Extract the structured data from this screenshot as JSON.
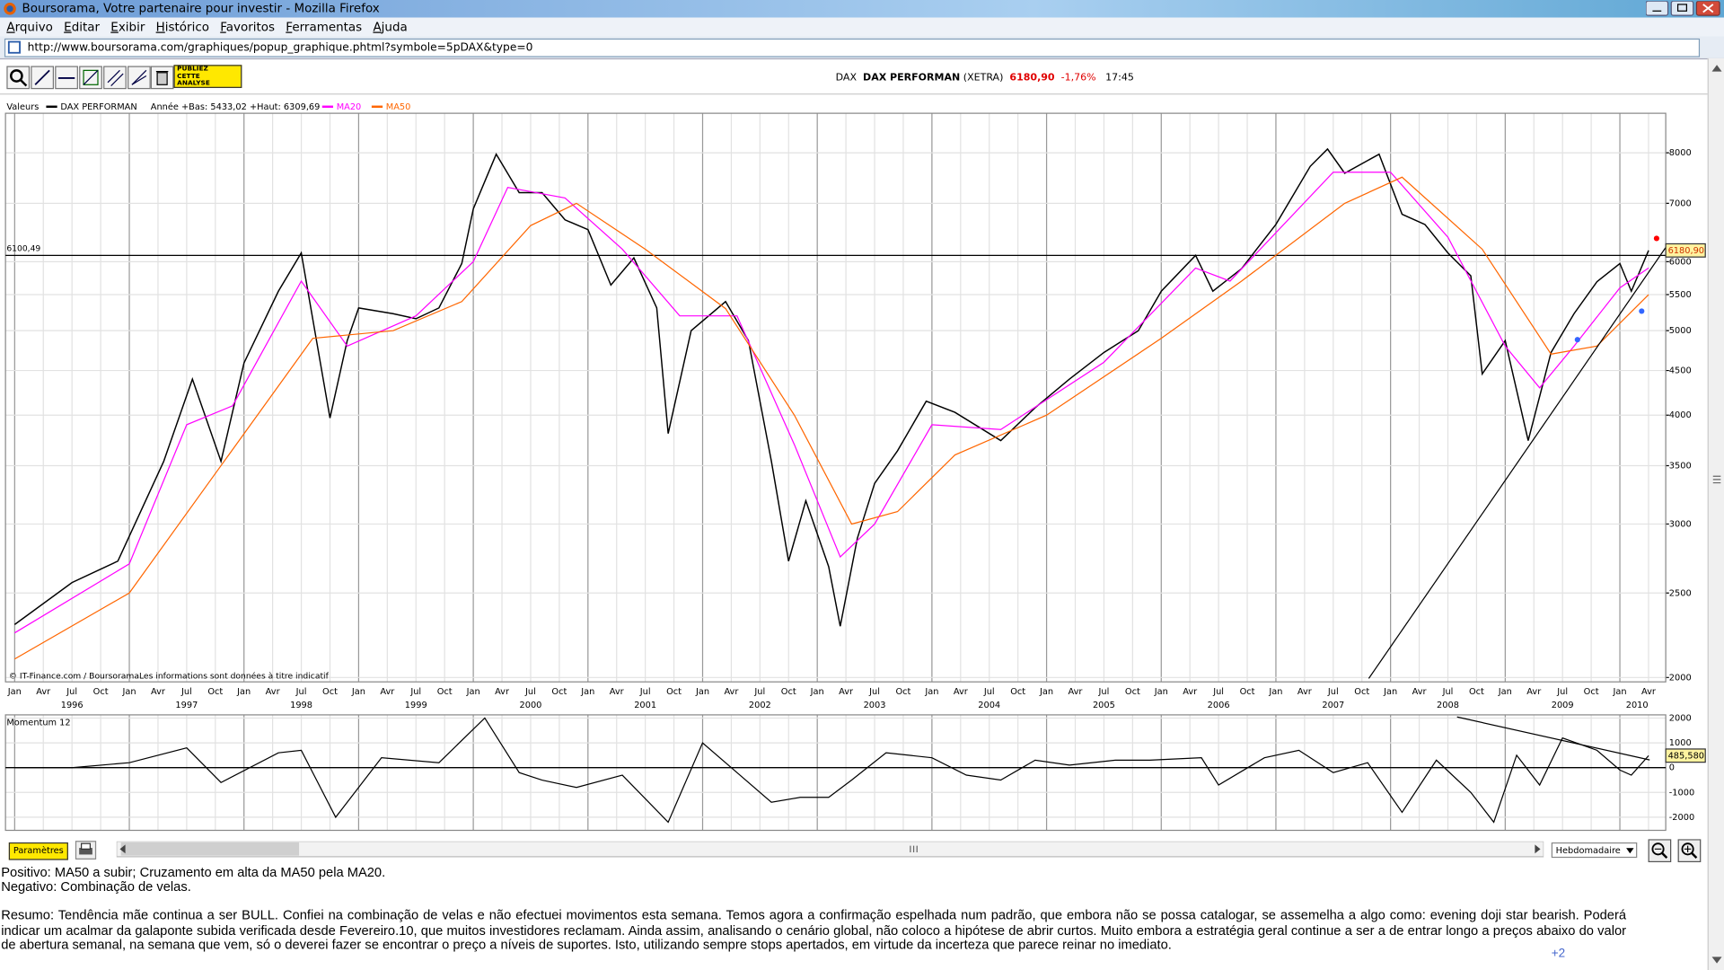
{
  "window": {
    "title": "Boursorama, Votre partenaire pour investir - Mozilla Firefox"
  },
  "menu": [
    "Arquivo",
    "Editar",
    "Exibir",
    "Histórico",
    "Favoritos",
    "Ferramentas",
    "Ajuda"
  ],
  "address": "http://www.boursorama.com/graphiques/popup_graphique.phtml?symbole=5pDAX&type=0",
  "toolbar": {
    "publish": [
      "PUBLIEZ",
      "CETTE",
      "ANALYSE"
    ]
  },
  "quote": {
    "code": "DAX",
    "name": "DAX PERFORMAN",
    "market": "(XETRA)",
    "price": "6180,90",
    "change": "-1,76%",
    "time": "17:45"
  },
  "chart_data": {
    "type": "line",
    "log_scale": true,
    "grid": true,
    "legend_title": "Valeurs",
    "range_note": "Année +Bas: 5433,02 +Haut: 6309,69",
    "source": "© IT-Finance.com / BoursoramaLes informations sont données à titre indicatif",
    "xlim": [
      1995.92,
      2010.4
    ],
    "ylim": [
      1977,
      8880
    ],
    "yticks": [
      2000,
      2500,
      3000,
      3500,
      4000,
      4500,
      5000,
      5500,
      6000,
      7000,
      8000
    ],
    "xticks": [
      {
        "value": 1996,
        "label": "Jan"
      },
      {
        "value": 1996.25,
        "label": "Avr"
      },
      {
        "value": 1996.5,
        "label": "Jul"
      },
      {
        "value": 1996.75,
        "label": "Oct"
      },
      {
        "value": 1997,
        "label": "Jan"
      },
      {
        "value": 1997.25,
        "label": "Avr"
      },
      {
        "value": 1997.5,
        "label": "Jul"
      },
      {
        "value": 1997.75,
        "label": "Oct"
      },
      {
        "value": 1998,
        "label": "Jan"
      },
      {
        "value": 1998.25,
        "label": "Avr"
      },
      {
        "value": 1998.5,
        "label": "Jul"
      },
      {
        "value": 1998.75,
        "label": "Oct"
      },
      {
        "value": 1999,
        "label": "Jan"
      },
      {
        "value": 1999.25,
        "label": "Avr"
      },
      {
        "value": 1999.5,
        "label": "Jul"
      },
      {
        "value": 1999.75,
        "label": "Oct"
      },
      {
        "value": 2000,
        "label": "Jan"
      },
      {
        "value": 2000.25,
        "label": "Avr"
      },
      {
        "value": 2000.5,
        "label": "Jul"
      },
      {
        "value": 2000.75,
        "label": "Oct"
      },
      {
        "value": 2001,
        "label": "Jan"
      },
      {
        "value": 2001.25,
        "label": "Avr"
      },
      {
        "value": 2001.5,
        "label": "Jul"
      },
      {
        "value": 2001.75,
        "label": "Oct"
      },
      {
        "value": 2002,
        "label": "Jan"
      },
      {
        "value": 2002.25,
        "label": "Avr"
      },
      {
        "value": 2002.5,
        "label": "Jul"
      },
      {
        "value": 2002.75,
        "label": "Oct"
      },
      {
        "value": 2003,
        "label": "Jan"
      },
      {
        "value": 2003.25,
        "label": "Avr"
      },
      {
        "value": 2003.5,
        "label": "Jul"
      },
      {
        "value": 2003.75,
        "label": "Oct"
      },
      {
        "value": 2004,
        "label": "Jan"
      },
      {
        "value": 2004.25,
        "label": "Avr"
      },
      {
        "value": 2004.5,
        "label": "Jul"
      },
      {
        "value": 2004.75,
        "label": "Oct"
      },
      {
        "value": 2005,
        "label": "Jan"
      },
      {
        "value": 2005.25,
        "label": "Avr"
      },
      {
        "value": 2005.5,
        "label": "Jul"
      },
      {
        "value": 2005.75,
        "label": "Oct"
      },
      {
        "value": 2006,
        "label": "Jan"
      },
      {
        "value": 2006.25,
        "label": "Avr"
      },
      {
        "value": 2006.5,
        "label": "Jul"
      },
      {
        "value": 2006.75,
        "label": "Oct"
      },
      {
        "value": 2007,
        "label": "Jan"
      },
      {
        "value": 2007.25,
        "label": "Avr"
      },
      {
        "value": 2007.5,
        "label": "Jul"
      },
      {
        "value": 2007.75,
        "label": "Oct"
      },
      {
        "value": 2008,
        "label": "Jan"
      },
      {
        "value": 2008.25,
        "label": "Avr"
      },
      {
        "value": 2008.5,
        "label": "Jul"
      },
      {
        "value": 2008.75,
        "label": "Oct"
      },
      {
        "value": 2009,
        "label": "Jan"
      },
      {
        "value": 2009.25,
        "label": "Avr"
      },
      {
        "value": 2009.5,
        "label": "Jul"
      },
      {
        "value": 2009.75,
        "label": "Oct"
      },
      {
        "value": 2010,
        "label": "Jan"
      },
      {
        "value": 2010.25,
        "label": "Avr"
      }
    ],
    "year_labels": [
      {
        "value": 1996.5,
        "label": "1996"
      },
      {
        "value": 1997.5,
        "label": "1997"
      },
      {
        "value": 1998.5,
        "label": "1998"
      },
      {
        "value": 1999.5,
        "label": "1999"
      },
      {
        "value": 2000.5,
        "label": "2000"
      },
      {
        "value": 2001.5,
        "label": "2001"
      },
      {
        "value": 2002.5,
        "label": "2002"
      },
      {
        "value": 2003.5,
        "label": "2003"
      },
      {
        "value": 2004.5,
        "label": "2004"
      },
      {
        "value": 2005.5,
        "label": "2005"
      },
      {
        "value": 2006.5,
        "label": "2006"
      },
      {
        "value": 2007.5,
        "label": "2007"
      },
      {
        "value": 2008.5,
        "label": "2008"
      },
      {
        "value": 2009.5,
        "label": "2009"
      },
      {
        "value": 2010.15,
        "label": "2010"
      }
    ],
    "series": [
      {
        "name": "DAX PERFORMAN",
        "color": "#000000",
        "x": [
          1996.0,
          1996.5,
          1996.9,
          1997.3,
          1997.55,
          1997.8,
          1998.0,
          1998.3,
          1998.5,
          1998.75,
          1998.9,
          1999.0,
          1999.3,
          1999.5,
          1999.7,
          1999.9,
          2000.0,
          2000.2,
          2000.4,
          2000.6,
          2000.8,
          2001.0,
          2001.2,
          2001.4,
          2001.6,
          2001.7,
          2001.9,
          2002.2,
          2002.4,
          2002.6,
          2002.75,
          2002.9,
          2003.1,
          2003.2,
          2003.35,
          2003.5,
          2003.7,
          2003.95,
          2004.2,
          2004.6,
          2004.9,
          2005.2,
          2005.5,
          2005.8,
          2006.0,
          2006.3,
          2006.45,
          2006.7,
          2007.0,
          2007.3,
          2007.45,
          2007.6,
          2007.9,
          2008.1,
          2008.3,
          2008.5,
          2008.7,
          2008.8,
          2009.0,
          2009.2,
          2009.4,
          2009.6,
          2009.8,
          2010.0,
          2010.1,
          2010.25
        ],
        "values": [
          2300,
          2570,
          2720,
          3540,
          4400,
          3540,
          4590,
          5550,
          6140,
          3970,
          4870,
          5310,
          5230,
          5160,
          5310,
          5970,
          6900,
          7970,
          7200,
          7200,
          6700,
          6530,
          5640,
          6060,
          5310,
          3810,
          5000,
          5400,
          4870,
          3540,
          2720,
          3190,
          2680,
          2290,
          2890,
          3340,
          3640,
          4150,
          4030,
          3740,
          4080,
          4400,
          4720,
          5000,
          5550,
          6100,
          5550,
          5890,
          6620,
          7720,
          8080,
          7580,
          7970,
          6800,
          6620,
          6140,
          5780,
          4460,
          4870,
          3740,
          4720,
          5230,
          5690,
          5970,
          5550,
          6180.9
        ]
      },
      {
        "name": "MA20",
        "color": "#ff00ff",
        "x": [
          1996.0,
          1997.0,
          1997.5,
          1997.9,
          1998.5,
          1998.9,
          1999.5,
          2000.0,
          2000.3,
          2000.8,
          2001.3,
          2001.8,
          2002.3,
          2002.8,
          2003.2,
          2003.5,
          2004.0,
          2004.6,
          2005.5,
          2006.3,
          2006.6,
          2007.5,
          2008.0,
          2008.5,
          2009.0,
          2009.3,
          2009.6,
          2010.0,
          2010.25
        ],
        "values": [
          2250,
          2700,
          3900,
          4100,
          5700,
          4800,
          5200,
          6000,
          7300,
          7100,
          6200,
          5200,
          5200,
          3700,
          2750,
          3000,
          3900,
          3850,
          4600,
          5900,
          5700,
          7600,
          7600,
          6400,
          4800,
          4300,
          4800,
          5600,
          5900
        ]
      },
      {
        "name": "MA50",
        "color": "#ff6600",
        "x": [
          1996.0,
          1997.0,
          1997.8,
          1998.6,
          1999.3,
          1999.9,
          2000.5,
          2000.9,
          2001.5,
          2002.2,
          2002.8,
          2003.3,
          2003.7,
          2004.2,
          2005.0,
          2006.0,
          2006.7,
          2007.6,
          2008.1,
          2008.8,
          2009.4,
          2009.8,
          2010.25
        ],
        "values": [
          2100,
          2500,
          3500,
          4900,
          5000,
          5400,
          6600,
          7000,
          6200,
          5300,
          4000,
          3000,
          3100,
          3600,
          4000,
          4900,
          5700,
          7000,
          7500,
          6200,
          4700,
          4800,
          5500
        ]
      }
    ],
    "last": {
      "value": 6180.9,
      "label": "6180,90"
    },
    "reference_line": {
      "value": 6100.49,
      "label": "6100,49"
    },
    "trendlines": [
      {
        "x": [
          2007.81,
          2010.4
        ],
        "values": [
          1995,
          6230
        ],
        "color": "#000000"
      }
    ],
    "markers": [
      {
        "x": 2010.32,
        "value": 6380,
        "color": "#ff0000"
      },
      {
        "x": 2009.63,
        "value": 4883,
        "color": "#3366ff"
      },
      {
        "x": 2010.19,
        "value": 5265,
        "color": "#3366ff"
      }
    ],
    "indicator": {
      "type": "line",
      "title": "Momentum 12",
      "color": "#000000",
      "zero_line": true,
      "ylim": [
        -2530,
        2130
      ],
      "yticks": [
        -2000,
        -1000,
        0,
        1000,
        2000
      ],
      "x": [
        1996.0,
        1996.5,
        1997.0,
        1997.5,
        1997.8,
        1998.3,
        1998.5,
        1998.8,
        1999.2,
        1999.7,
        2000.1,
        2000.4,
        2000.6,
        2000.9,
        2001.3,
        2001.7,
        2002.0,
        2002.3,
        2002.6,
        2002.85,
        2003.1,
        2003.3,
        2003.6,
        2004.0,
        2004.3,
        2004.6,
        2004.9,
        2005.2,
        2005.6,
        2005.9,
        2006.35,
        2006.5,
        2006.9,
        2007.2,
        2007.5,
        2007.8,
        2008.1,
        2008.4,
        2008.7,
        2008.9,
        2009.1,
        2009.3,
        2009.5,
        2009.8,
        2010.0,
        2010.1,
        2010.25
      ],
      "values": [
        0,
        0,
        200,
        800,
        -600,
        600,
        700,
        -2000,
        400,
        200,
        2000,
        -200,
        -500,
        -800,
        -300,
        -2200,
        1000,
        -200,
        -1400,
        -1200,
        -1200,
        -500,
        600,
        400,
        -300,
        -500,
        300,
        100,
        300,
        300,
        400,
        -700,
        400,
        700,
        -200,
        200,
        -1800,
        300,
        -1000,
        -2200,
        500,
        -700,
        1200,
        700,
        -100,
        -300,
        485.58
      ],
      "last": {
        "value": 485.58,
        "label": "485,580"
      },
      "trendlines": [
        {
          "x": [
            2008.58,
            2010.26
          ],
          "values": [
            2044,
            311
          ],
          "color": "#000000"
        }
      ]
    }
  },
  "controls": {
    "params": "Paramètres",
    "period": "Hebdomadaire"
  },
  "comments": {
    "lines": [
      "Positivo: MA50 a subir; Cruzamento em alta da MA50 pela MA20.",
      "Negativo: Combinação de velas."
    ],
    "summary": "Resumo: Tendência mãe continua a ser BULL. Confiei na combinação de velas e não efectuei movimentos esta semana. Temos agora a confirmação espelhada num padrão, que embora não se possa catalogar, se assemelha a algo como: evening doji star bearish. Poderá indicar um acalmar da galaponte subida verificada desde Fevereiro.10, que muitos investidores reclamam. Ainda assim, analisando o cenário global, não coloco a hipótese de abrir curtos. Muito embora a estratégia geral continue a ser a de entrar longo a preços abaixo do valor de abertura semanal, na semana que vem, só o deverei fazer se encontrar o preço a níveis de suportes. Isto, utilizando sempre stops apertados, em virtude da incerteza que parece reinar no imediato.",
    "more": "+2"
  }
}
